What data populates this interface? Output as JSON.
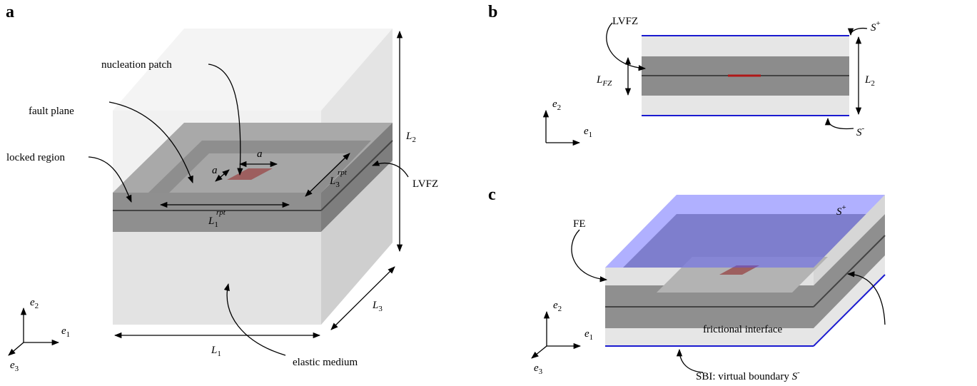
{
  "panel_a": {
    "label": "a",
    "nucleation_patch": "nucleation patch",
    "fault_plane": "fault plane",
    "locked_region": "locked region",
    "lvfz": "LVFZ",
    "elastic_medium": "elastic medium",
    "L1": {
      "base": "L",
      "sub": "1"
    },
    "L2": {
      "base": "L",
      "sub": "2"
    },
    "L3": {
      "base": "L",
      "sub": "3"
    },
    "a_width": "a",
    "a_depth": "a",
    "L1_rpt": {
      "base": "L",
      "sub": "1",
      "sup": "rpt"
    },
    "L3_rpt": {
      "base": "L",
      "sub": "3",
      "sup": "rpt"
    },
    "axes": {
      "e1": {
        "base": "e",
        "sub": "1"
      },
      "e2": {
        "base": "e",
        "sub": "2"
      },
      "e3": {
        "base": "e",
        "sub": "3"
      }
    }
  },
  "panel_b": {
    "label": "b",
    "lvfz": "LVFZ",
    "S_plus": {
      "base": "S",
      "sup": "+"
    },
    "S_minus": {
      "base": "S",
      "sup": "-"
    },
    "L_FZ": {
      "base": "L",
      "sub": "FZ"
    },
    "L2": {
      "base": "L",
      "sub": "2"
    },
    "axes": {
      "e1": {
        "base": "e",
        "sub": "1"
      },
      "e2": {
        "base": "e",
        "sub": "2"
      }
    }
  },
  "panel_c": {
    "label": "c",
    "fe": "FE",
    "S_plus": {
      "base": "S",
      "sup": "+"
    },
    "frictional_interface": "frictional interface",
    "sbi": {
      "text": "SBI: virtual boundary ",
      "base": "S",
      "sup": "-"
    },
    "axes": {
      "e1": {
        "base": "e",
        "sub": "1"
      },
      "e2": {
        "base": "e",
        "sub": "2"
      },
      "e3": {
        "base": "e",
        "sub": "3"
      }
    }
  }
}
